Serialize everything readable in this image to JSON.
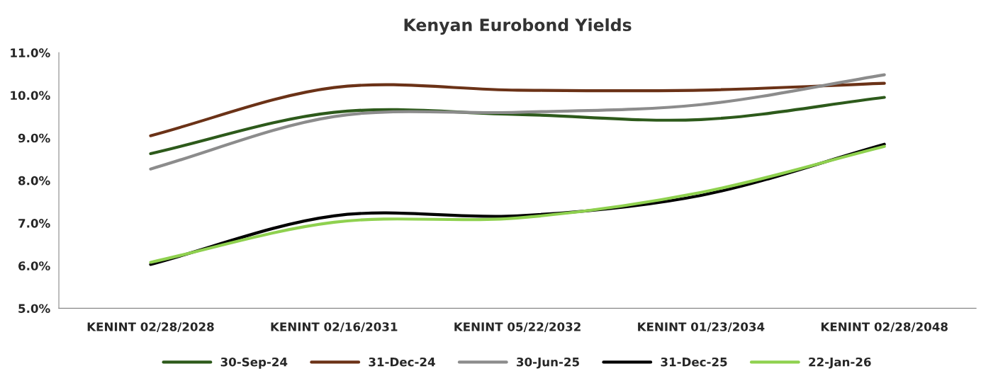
{
  "chart_data": {
    "type": "line",
    "title": "Kenyan Eurobond Yields",
    "categories": [
      "KENINT 02/28/2028",
      "KENINT 02/16/2031",
      "KENINT 05/22/2032",
      "KENINT 01/23/2034",
      "KENINT 02/28/2048"
    ],
    "series": [
      {
        "name": "30-Sep-24",
        "color": "#2d5a1b",
        "values": [
          8.63,
          9.6,
          9.55,
          9.43,
          9.95
        ]
      },
      {
        "name": "31-Dec-24",
        "color": "#6b3217",
        "values": [
          9.05,
          10.18,
          10.12,
          10.12,
          10.28
        ]
      },
      {
        "name": "30-Jun-25",
        "color": "#8c8c8c",
        "values": [
          8.27,
          9.5,
          9.6,
          9.78,
          10.48
        ]
      },
      {
        "name": "31-Dec-25",
        "color": "#000000",
        "values": [
          6.03,
          7.17,
          7.17,
          7.65,
          8.85
        ]
      },
      {
        "name": "22-Jan-26",
        "color": "#8fd14f",
        "values": [
          6.08,
          7.02,
          7.12,
          7.72,
          8.8
        ]
      }
    ],
    "ylim": [
      5,
      11
    ],
    "yticks": [
      {
        "value": 5,
        "label": "5.0%"
      },
      {
        "value": 6,
        "label": "6.0%"
      },
      {
        "value": 7,
        "label": "7.0%"
      },
      {
        "value": 8,
        "label": "8.0%"
      },
      {
        "value": 9,
        "label": "9.0%"
      },
      {
        "value": 10,
        "label": "10.0%"
      },
      {
        "value": 11,
        "label": "11.0%"
      }
    ],
    "grid": false,
    "legend": "bottom",
    "marker": "none",
    "line_style": "solid"
  }
}
